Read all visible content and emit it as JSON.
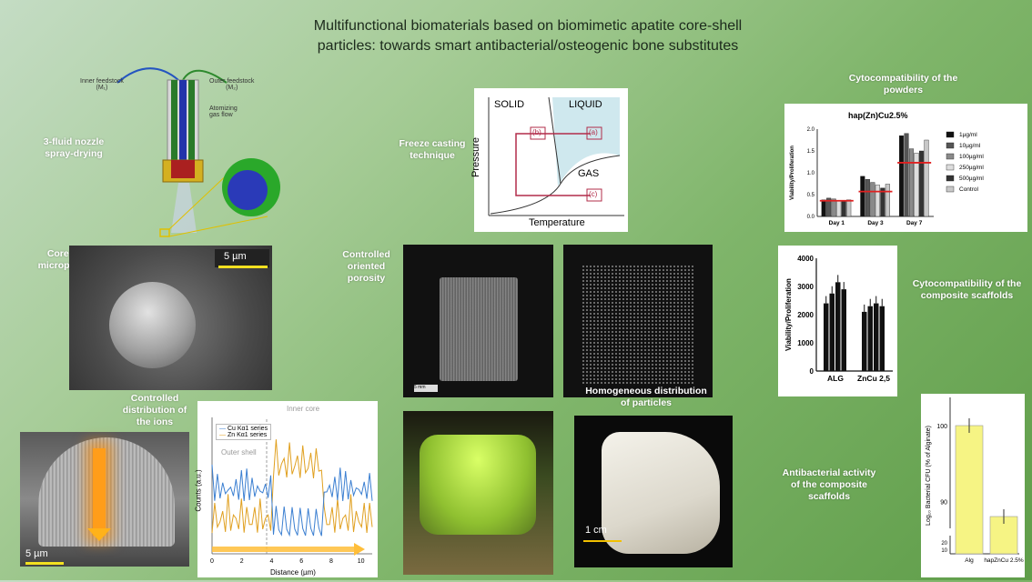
{
  "title_line1": "Multifunctional biomaterials based on biomimetic apatite core-shell",
  "title_line2": "particles: towards smart antibacterial/osteogenic bone substitutes",
  "captions": {
    "nozzle": "3-fluid nozzle spray-drying",
    "freeze": "Freeze casting technique",
    "cyto_powders": "Cytocompatibility of the powders",
    "core_shell": "Core-shell microparticles",
    "porosity": "Controlled oriented porosity",
    "cyto_scaffolds": "Cytocompatibility of the composite scaffolds",
    "ions": "Controlled distribution of the ions",
    "homogeneous": "Homogeneous distribution of particles",
    "antibacterial": "Antibacterial activity of the composite scaffolds"
  },
  "nozzle": {
    "inner": "Inner feedstock",
    "inner_sub": "(M₁)",
    "outer": "Outer feedstock",
    "outer_sub": "(M₂)",
    "gas1": "Atomizing",
    "gas2": "gas flow"
  },
  "phase": {
    "solid": "SOLID",
    "liquid": "LIQUID",
    "gas": "GAS",
    "ylabel": "Pressure",
    "xlabel": "Temperature",
    "a": "(a)",
    "b": "(b)",
    "c": "(c)"
  },
  "scales": {
    "sem": "5 µm",
    "sem2": "5 µm",
    "ct": "5 mm",
    "photo": "1 cm"
  },
  "profile": {
    "inner_core": "Inner core",
    "outer_shell": "Outer shell",
    "legend_cu": "Cu Kα1 series",
    "legend_zn": "Zn Kα1 series",
    "ylabel": "Counts (a.u.)",
    "xlabel": "Distance (µm)",
    "xticks": [
      "0",
      "2",
      "4",
      "6",
      "8",
      "10"
    ]
  },
  "chart_data": [
    {
      "type": "bar",
      "title": "hap(Zn)Cu2.5%",
      "ylabel": "Viability/Proliferation",
      "categories": [
        "Day 1",
        "Day 3",
        "Day 7"
      ],
      "ylim": [
        0,
        2.0
      ],
      "yticks": [
        "0.0",
        "0.5",
        "1.0",
        "1.5",
        "2.0"
      ],
      "series": [
        {
          "name": "1µg/ml",
          "values": [
            0.38,
            0.92,
            1.85
          ],
          "color": "#111111"
        },
        {
          "name": "10µg/ml",
          "values": [
            0.42,
            0.85,
            1.9
          ],
          "color": "#555555"
        },
        {
          "name": "100µg/ml",
          "values": [
            0.4,
            0.78,
            1.55
          ],
          "color": "#8a8a8a"
        },
        {
          "name": "250µg/ml",
          "values": [
            0.37,
            0.72,
            1.45
          ],
          "color": "#dddddd"
        },
        {
          "name": "500µg/ml",
          "values": [
            0.35,
            0.65,
            1.5
          ],
          "color": "#333333"
        },
        {
          "name": "Control",
          "values": [
            0.38,
            0.74,
            1.75
          ],
          "color": "#c8c8c8"
        }
      ],
      "control_levels": [
        0.36,
        0.57,
        1.23
      ]
    },
    {
      "type": "bar",
      "ylabel": "Viability/Proliferation",
      "categories": [
        "ALG",
        "ZnCu 2,5"
      ],
      "ylim": [
        0,
        4000
      ],
      "yticks": [
        "0",
        "1000",
        "2000",
        "3000",
        "4000"
      ],
      "values": [
        [
          2400,
          2750,
          3150,
          2900
        ],
        [
          2100,
          2300,
          2400,
          2300
        ]
      ]
    },
    {
      "type": "bar",
      "ylabel": "Log₁₀ Bacterial CFU (% of Alginate)",
      "categories": [
        "Alg",
        "hapZnCu 2.5%"
      ],
      "values": [
        100,
        88
      ],
      "yticks_upper": [
        "90",
        "100"
      ],
      "yticks_lower": [
        "10",
        "20"
      ]
    }
  ]
}
